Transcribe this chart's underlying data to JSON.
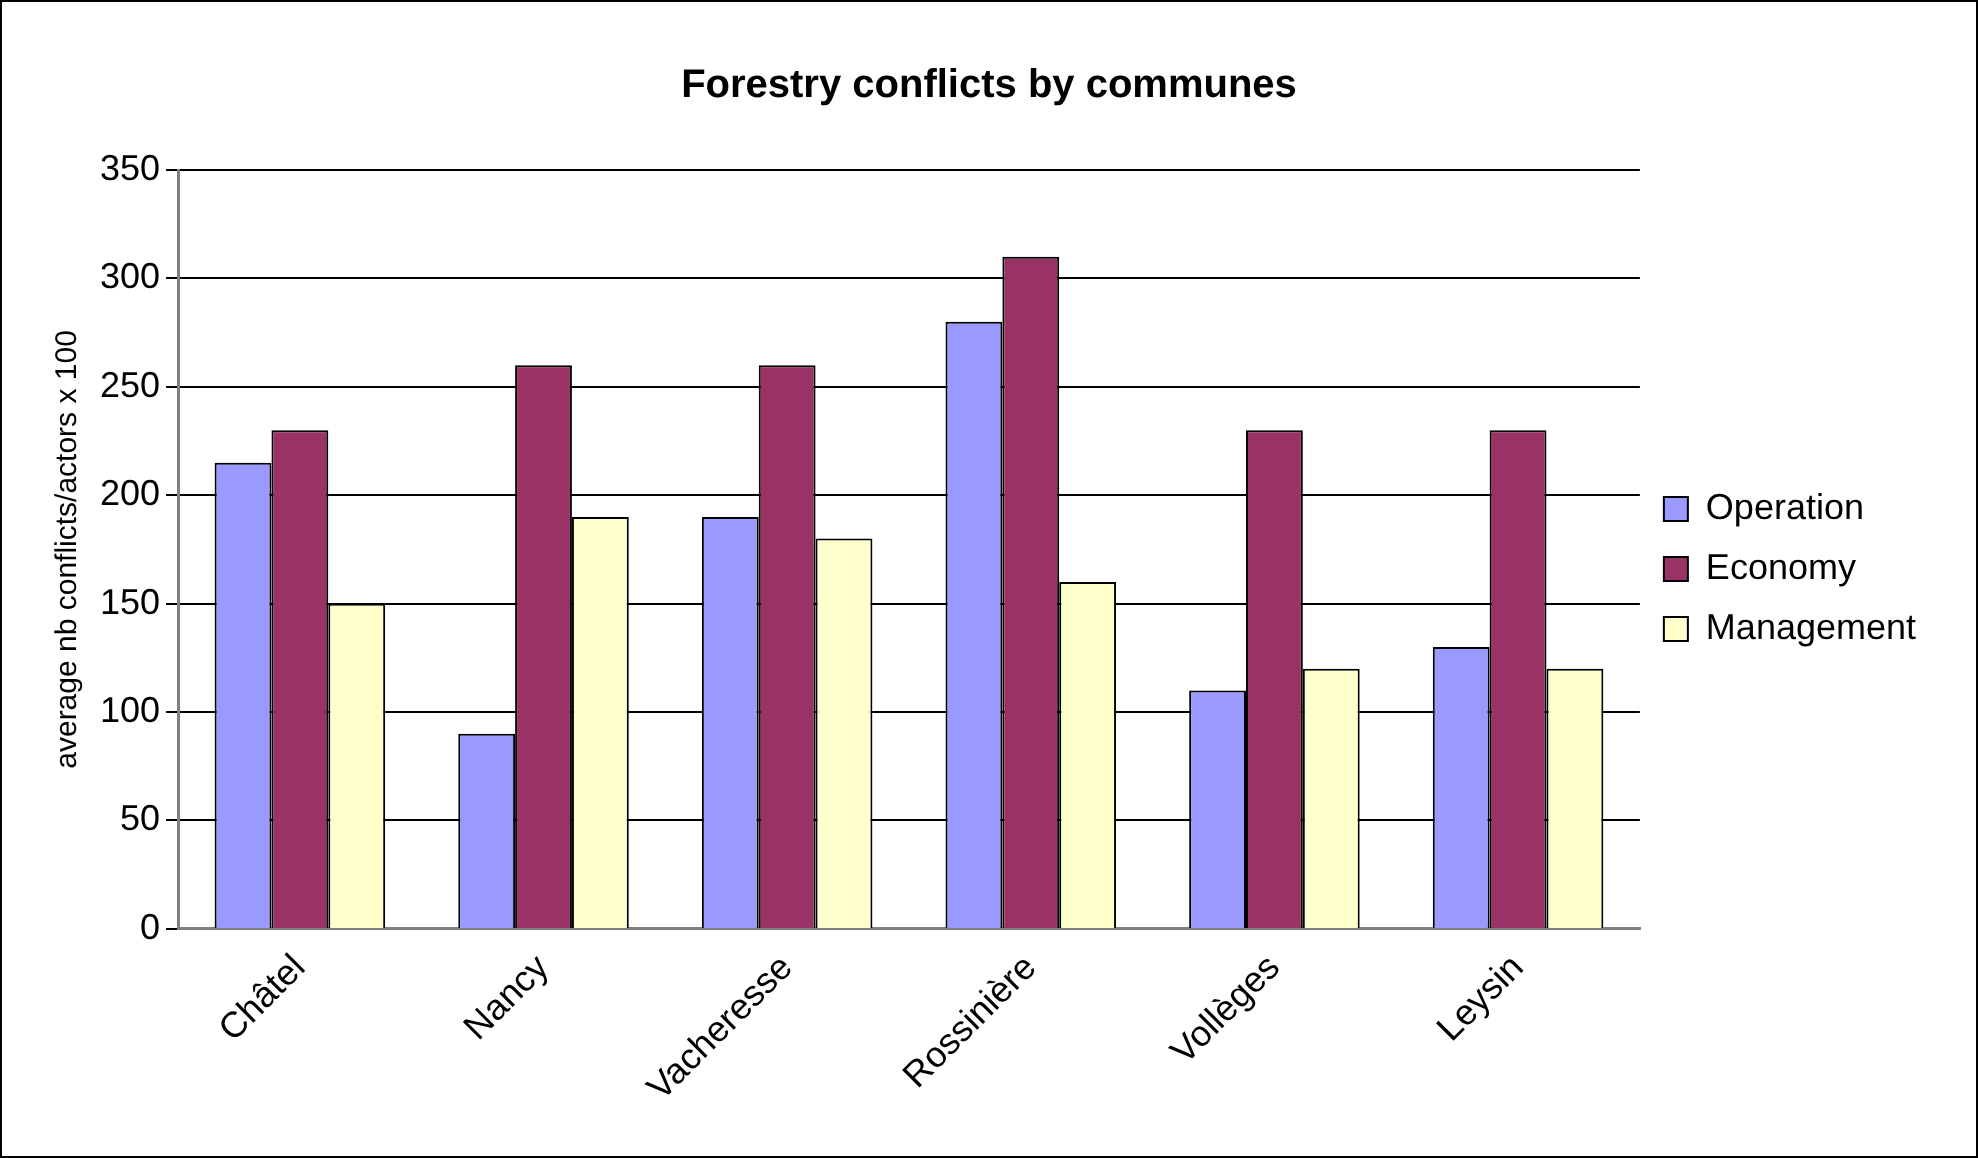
{
  "chart_data": {
    "type": "bar",
    "title": "Forestry conflicts by communes",
    "ylabel": "average nb conflicts/actors x 100",
    "categories": [
      "Châtel",
      "Nancy",
      "Vacheresse",
      "Rossinière",
      "Vollèges",
      "Leysin"
    ],
    "series": [
      {
        "name": "Operation",
        "color": "#9999ff",
        "values": [
          215,
          90,
          190,
          280,
          110,
          130
        ]
      },
      {
        "name": "Economy",
        "color": "#993366",
        "values": [
          230,
          260,
          260,
          310,
          230,
          230
        ]
      },
      {
        "name": "Management",
        "color": "#ffffcc",
        "values": [
          150,
          190,
          180,
          160,
          120,
          120
        ]
      }
    ],
    "ylim": [
      0,
      350
    ],
    "yticks": [
      0,
      50,
      100,
      150,
      200,
      250,
      300,
      350
    ],
    "grid": "y",
    "legend": "right"
  }
}
